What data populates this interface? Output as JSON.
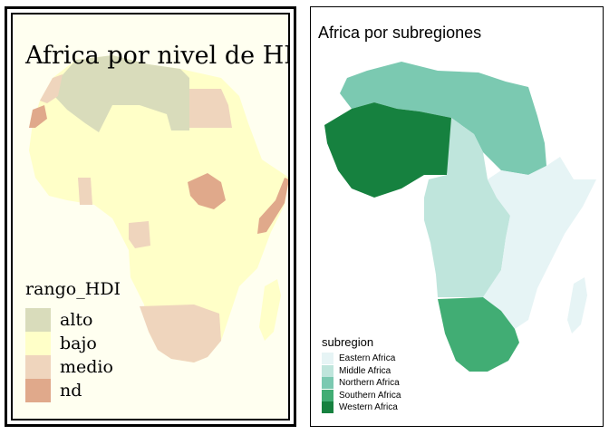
{
  "left_map": {
    "title": "Africa por nivel de HDI",
    "legend_title": "rango_HDI",
    "categories": [
      {
        "label": "alto",
        "color": "#d9dcbb"
      },
      {
        "label": "bajo",
        "color": "#ffffc8"
      },
      {
        "label": "medio",
        "color": "#efd5bd"
      },
      {
        "label": "nd",
        "color": "#e0a98b"
      }
    ]
  },
  "right_map": {
    "title": "Africa por subregiones",
    "legend_title": "subregion",
    "categories": [
      {
        "label": "Eastern Africa",
        "color": "#e6f4f5"
      },
      {
        "label": "Middle Africa",
        "color": "#bfe5dc"
      },
      {
        "label": "Northern Africa",
        "color": "#7bc9b1"
      },
      {
        "label": "Southern Africa",
        "color": "#41ad74"
      },
      {
        "label": "Western Africa",
        "color": "#16813f"
      }
    ]
  }
}
